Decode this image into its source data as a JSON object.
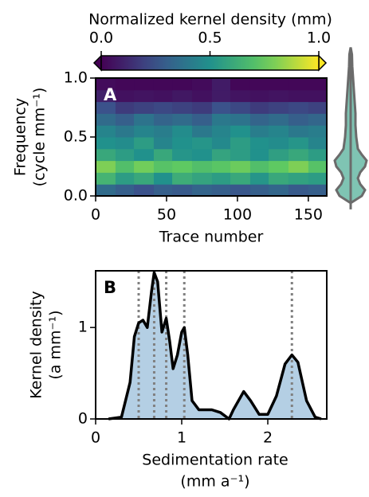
{
  "chart_data": [
    {
      "type": "heatmap",
      "label": "A",
      "colorbar_title": "Normalized kernel density (mm)",
      "colormap": "viridis",
      "colorbar_lim": [
        0,
        1
      ],
      "colorbar_ticks": [
        {
          "value": 0,
          "label": "0.0"
        },
        {
          "value": 0.5,
          "label": "0.5"
        },
        {
          "value": 1,
          "label": "1.0"
        }
      ],
      "xlabel": "Trace number",
      "ylabel": [
        "Frequency",
        "(cycle mm⁻¹)"
      ],
      "xlim": [
        0,
        163
      ],
      "xticks": [
        0,
        50,
        100,
        150
      ],
      "ylim": [
        0,
        1
      ],
      "yticks": [
        {
          "value": 0,
          "label": "0.0"
        },
        {
          "value": 0.5,
          "label": "0.5"
        },
        {
          "value": 1,
          "label": "1.0"
        }
      ],
      "x_bins": [
        0,
        14,
        27,
        41,
        54,
        68,
        82,
        95,
        109,
        122,
        136,
        150,
        163
      ],
      "y_bins": [
        0,
        0.1,
        0.2,
        0.3,
        0.4,
        0.5,
        0.6,
        0.7,
        0.8,
        0.9,
        1.0
      ],
      "z": [
        [
          0.35,
          0.3,
          0.25,
          0.3,
          0.28,
          0.32,
          0.3,
          0.27,
          0.3,
          0.33,
          0.28,
          0.3
        ],
        [
          0.65,
          0.55,
          0.6,
          0.5,
          0.62,
          0.58,
          0.55,
          0.6,
          0.52,
          0.6,
          0.57,
          0.55
        ],
        [
          0.8,
          0.7,
          0.78,
          0.72,
          0.75,
          0.7,
          0.73,
          0.77,
          0.7,
          0.75,
          0.8,
          0.72
        ],
        [
          0.6,
          0.55,
          0.5,
          0.6,
          0.52,
          0.5,
          0.58,
          0.55,
          0.5,
          0.56,
          0.6,
          0.55
        ],
        [
          0.5,
          0.48,
          0.55,
          0.45,
          0.5,
          0.52,
          0.47,
          0.55,
          0.5,
          0.48,
          0.52,
          0.45
        ],
        [
          0.45,
          0.4,
          0.45,
          0.42,
          0.48,
          0.4,
          0.45,
          0.5,
          0.42,
          0.45,
          0.4,
          0.42
        ],
        [
          0.35,
          0.3,
          0.38,
          0.32,
          0.35,
          0.3,
          0.4,
          0.38,
          0.32,
          0.35,
          0.3,
          0.33
        ],
        [
          0.25,
          0.18,
          0.2,
          0.22,
          0.2,
          0.18,
          0.25,
          0.22,
          0.18,
          0.2,
          0.22,
          0.2
        ],
        [
          0.1,
          0.05,
          0.06,
          0.05,
          0.07,
          0.05,
          0.08,
          0.06,
          0.05,
          0.06,
          0.05,
          0.05
        ],
        [
          0.03,
          0.02,
          0.02,
          0.02,
          0.02,
          0.03,
          0.08,
          0.02,
          0.02,
          0.02,
          0.02,
          0.02
        ]
      ],
      "violin": {
        "y": [
          -0.06,
          0,
          0.05,
          0.1,
          0.15,
          0.2,
          0.25,
          0.3,
          0.35,
          0.4,
          0.5,
          0.6,
          0.7,
          0.8,
          0.9,
          1.0,
          1.1,
          1.2,
          1.26
        ],
        "width": [
          0,
          0.7,
          0.9,
          0.6,
          0.45,
          0.6,
          0.9,
          1.0,
          0.7,
          0.45,
          0.35,
          0.3,
          0.3,
          0.25,
          0.2,
          0.15,
          0.1,
          0.08,
          0
        ],
        "color": "#7fc4b3",
        "edgecolor": "#6b6b6b"
      }
    },
    {
      "type": "area",
      "label": "B",
      "xlabel": [
        "Sedimentation rate",
        "(mm a⁻¹)"
      ],
      "ylabel": [
        "Kernel density",
        "(a mm⁻¹)"
      ],
      "xlim": [
        0,
        2.685
      ],
      "xticks": [
        0,
        1,
        2
      ],
      "ylim": [
        0,
        1.62
      ],
      "yticks": [
        0,
        1
      ],
      "color": "#b4cfe4",
      "linecolor": "#000000",
      "x": [
        0.15,
        0.3,
        0.4,
        0.45,
        0.5,
        0.55,
        0.6,
        0.65,
        0.68,
        0.72,
        0.77,
        0.82,
        0.86,
        0.9,
        0.95,
        1.0,
        1.03,
        1.07,
        1.12,
        1.2,
        1.35,
        1.45,
        1.55,
        1.6,
        1.72,
        1.8,
        1.9,
        2.0,
        2.1,
        2.2,
        2.28,
        2.35,
        2.45,
        2.55,
        2.62
      ],
      "y": [
        0,
        0.02,
        0.4,
        0.9,
        1.05,
        1.08,
        1.0,
        1.4,
        1.6,
        1.5,
        0.95,
        1.1,
        0.85,
        0.55,
        0.7,
        0.95,
        1.0,
        0.7,
        0.2,
        0.1,
        0.1,
        0.07,
        0.0,
        0.1,
        0.3,
        0.2,
        0.05,
        0.05,
        0.25,
        0.6,
        0.7,
        0.62,
        0.2,
        0.02,
        0
      ],
      "peaks": [
        0.5,
        0.68,
        0.82,
        1.03,
        2.28
      ],
      "peak_color": "#808080"
    }
  ]
}
